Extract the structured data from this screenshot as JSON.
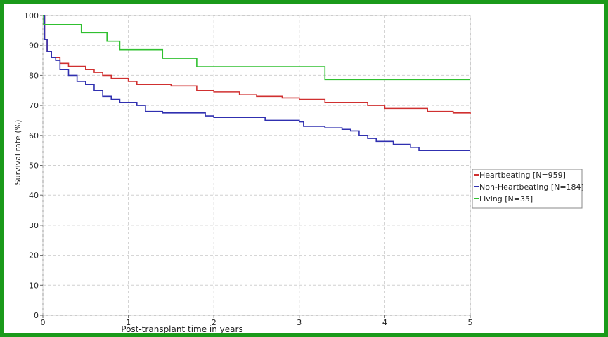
{
  "chart_data": {
    "type": "line",
    "step": true,
    "xlabel": "Post-transplant time in years",
    "ylabel": "Survival rate (%)",
    "xlim": [
      0,
      5
    ],
    "xticks": [
      0,
      1,
      2,
      3,
      4,
      5
    ],
    "ylim": [
      0,
      100
    ],
    "yticks": [
      0,
      10,
      20,
      30,
      40,
      50,
      60,
      70,
      80,
      90,
      100
    ],
    "grid": true,
    "legend": "right",
    "series": [
      {
        "name": "Heartbeating [N=959]",
        "color": "#d03030",
        "x": [
          0,
          0.02,
          0.05,
          0.1,
          0.2,
          0.3,
          0.5,
          0.6,
          0.7,
          0.8,
          1.0,
          1.1,
          1.5,
          1.8,
          2.0,
          2.3,
          2.5,
          2.8,
          3.0,
          3.3,
          3.5,
          3.8,
          4.0,
          4.2,
          4.5,
          4.8,
          5.0
        ],
        "values": [
          100,
          92,
          88,
          86,
          84,
          83,
          82,
          81,
          80,
          79,
          78,
          77,
          76.5,
          75,
          74.5,
          73.5,
          73,
          72.5,
          72,
          71,
          71,
          70,
          69,
          69,
          68,
          67.5,
          67
        ]
      },
      {
        "name": "Non-Heartbeating [N=184]",
        "color": "#3030b0",
        "x": [
          0,
          0.02,
          0.05,
          0.1,
          0.15,
          0.2,
          0.3,
          0.4,
          0.5,
          0.6,
          0.7,
          0.8,
          0.9,
          1.1,
          1.2,
          1.4,
          1.9,
          2.0,
          2.6,
          3.0,
          3.05,
          3.3,
          3.5,
          3.6,
          3.7,
          3.8,
          3.9,
          4.1,
          4.3,
          4.4,
          5.0
        ],
        "values": [
          100,
          92,
          88,
          86,
          85,
          82,
          80,
          78,
          77,
          75,
          73,
          72,
          71,
          70,
          68,
          67.5,
          66.5,
          66,
          65,
          64.5,
          63,
          62.5,
          62,
          61.5,
          60,
          59,
          58,
          57,
          56,
          55,
          55
        ]
      },
      {
        "name": "Living [N=35]",
        "color": "#30c030",
        "x": [
          0,
          0.01,
          0.45,
          0.75,
          0.9,
          1.4,
          1.8,
          3.3,
          5.0
        ],
        "values": [
          100,
          97,
          94.3,
          91.4,
          88.6,
          85.7,
          82.9,
          78.6,
          78.6
        ]
      }
    ]
  }
}
